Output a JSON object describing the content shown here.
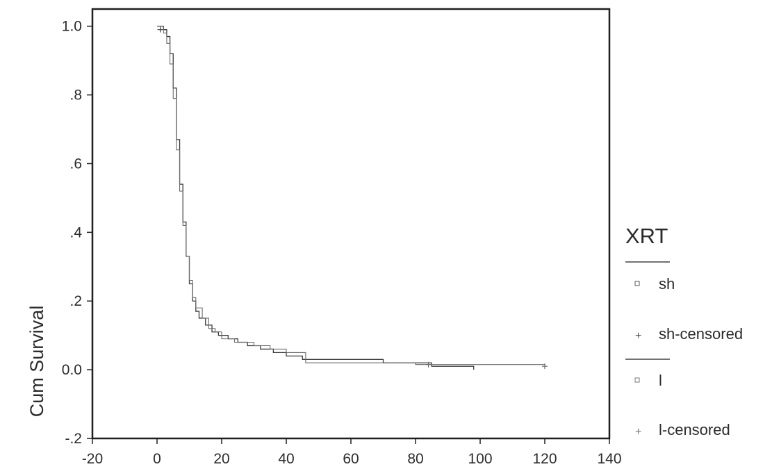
{
  "chart_data": {
    "type": "line",
    "title": "",
    "xlabel": "",
    "ylabel": "Cum Survival",
    "xlim": [
      -20,
      140
    ],
    "ylim": [
      -0.2,
      1.05
    ],
    "x_ticks": [
      -20,
      0,
      20,
      40,
      60,
      80,
      100,
      120,
      140
    ],
    "x_tick_labels": [
      "-20",
      "0",
      "20",
      "40",
      "60",
      "80",
      "100",
      "120",
      "140"
    ],
    "y_ticks": [
      1.0,
      0.8,
      0.6,
      0.4,
      0.2,
      0.0,
      -0.2
    ],
    "y_tick_labels": [
      "1.0",
      ".8",
      ".6",
      ".4",
      ".2",
      "0.0",
      "-.2"
    ],
    "grid": false,
    "legend": {
      "title": "XRT",
      "placement": "right",
      "entries": [
        "sh",
        "sh-censored",
        "l",
        "l-censored"
      ]
    },
    "series": [
      {
        "name": "sh",
        "x": [
          0,
          2,
          3,
          4,
          5,
          6,
          7,
          8,
          9,
          10,
          11,
          12,
          13,
          15,
          17,
          19,
          22,
          25,
          28,
          32,
          36,
          40,
          45,
          50,
          60,
          70,
          85,
          98
        ],
        "y": [
          1.0,
          0.99,
          0.97,
          0.92,
          0.82,
          0.67,
          0.54,
          0.43,
          0.33,
          0.25,
          0.2,
          0.17,
          0.15,
          0.13,
          0.11,
          0.1,
          0.09,
          0.08,
          0.07,
          0.06,
          0.05,
          0.04,
          0.03,
          0.03,
          0.03,
          0.02,
          0.01,
          0.0
        ]
      },
      {
        "name": "l",
        "x": [
          0,
          2,
          3,
          4,
          5,
          6,
          7,
          8,
          9,
          10,
          11,
          12,
          14,
          16,
          18,
          20,
          24,
          30,
          35,
          40,
          46,
          55,
          70,
          80,
          100,
          120
        ],
        "y": [
          1.0,
          0.98,
          0.95,
          0.89,
          0.79,
          0.64,
          0.52,
          0.42,
          0.33,
          0.26,
          0.21,
          0.18,
          0.15,
          0.12,
          0.11,
          0.09,
          0.08,
          0.07,
          0.06,
          0.05,
          0.02,
          0.02,
          0.02,
          0.015,
          0.015,
          0.01
        ]
      }
    ],
    "censored": [
      {
        "series": "sh",
        "x": 1,
        "y": 0.99
      },
      {
        "series": "l",
        "x": 84,
        "y": 0.015
      },
      {
        "series": "l",
        "x": 120,
        "y": 0.01
      }
    ],
    "colors": {
      "sh": "#3a3a3a",
      "l": "#6b6b6b",
      "frame": "#1f1f1f"
    }
  }
}
